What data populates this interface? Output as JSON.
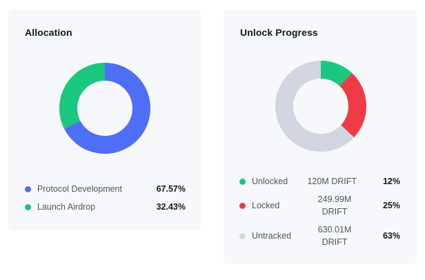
{
  "allocation": {
    "title": "Allocation",
    "items": [
      {
        "label": "Protocol Development",
        "percent": "67.57%",
        "color": "#4f6ef7"
      },
      {
        "label": "Launch Airdrop",
        "percent": "32.43%",
        "color": "#19c77e"
      }
    ]
  },
  "unlock": {
    "title": "Unlock Progress",
    "items": [
      {
        "label": "Unlocked",
        "amount": "120M DRIFT",
        "percent": "12%",
        "color": "#19c77e"
      },
      {
        "label": "Locked",
        "amount": "249.99M\nDRIFT",
        "percent": "25%",
        "color": "#ef3b45"
      },
      {
        "label": "Untracked",
        "amount": "630.01M\nDRIFT",
        "percent": "63%",
        "color": "#d1d6e0"
      }
    ]
  },
  "chart_data": [
    {
      "type": "pie",
      "title": "Allocation",
      "categories": [
        "Protocol Development",
        "Launch Airdrop"
      ],
      "values": [
        67.57,
        32.43
      ],
      "colors": [
        "#4f6ef7",
        "#19c77e"
      ],
      "donut": true,
      "legend": "bottom"
    },
    {
      "type": "pie",
      "title": "Unlock Progress",
      "categories": [
        "Unlocked",
        "Locked",
        "Untracked"
      ],
      "values": [
        12,
        25,
        63
      ],
      "amounts": [
        "120M DRIFT",
        "249.99M DRIFT",
        "630.01M DRIFT"
      ],
      "colors": [
        "#19c77e",
        "#ef3b45",
        "#d1d6e0"
      ],
      "donut": true,
      "legend": "bottom"
    }
  ]
}
